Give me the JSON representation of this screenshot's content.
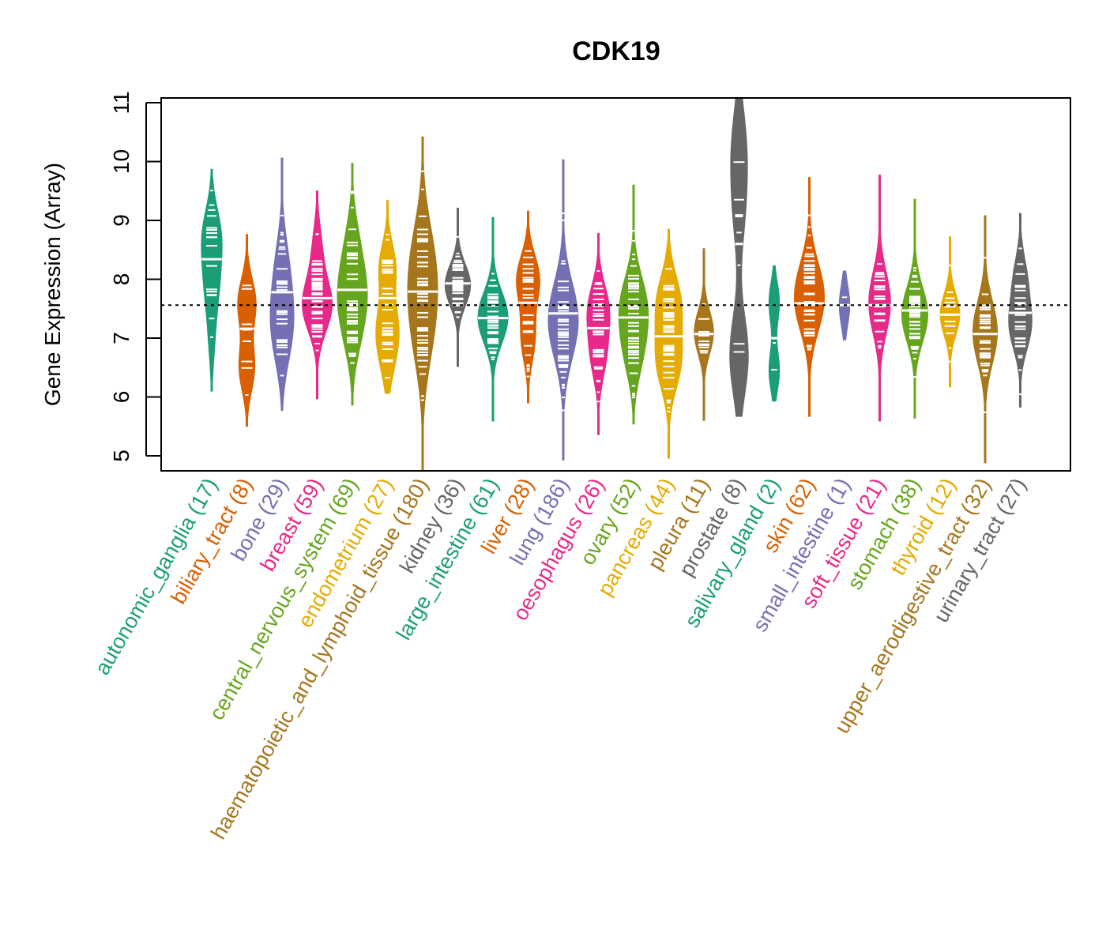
{
  "chart_data": {
    "type": "violin",
    "title": "CDK19",
    "xlabel": "",
    "ylabel": "Gene Expression (Array)",
    "ylim": [
      4.75,
      11.1
    ],
    "yticks": [
      5,
      6,
      7,
      8,
      9,
      10,
      11
    ],
    "reference_line": 7.56,
    "grid": false,
    "categories": [
      {
        "name": "autonomic_ganglia",
        "n": 17,
        "color": "#1B9E77",
        "min": 6.1,
        "max": 9.87,
        "median": 8.34,
        "modes": [
          [
            8.75,
            1.0
          ],
          [
            7.9,
            0.7
          ],
          [
            7.0,
            0.3
          ]
        ]
      },
      {
        "name": "biliary_tract",
        "n": 8,
        "color": "#D95F02",
        "min": 5.5,
        "max": 8.76,
        "median": 7.16,
        "modes": [
          [
            7.6,
            1.0
          ],
          [
            6.5,
            0.85
          ]
        ]
      },
      {
        "name": "bone",
        "n": 29,
        "color": "#7570B3",
        "min": 5.77,
        "max": 10.06,
        "median": 7.78,
        "modes": [
          [
            8.3,
            0.7
          ],
          [
            7.5,
            1.0
          ],
          [
            6.9,
            0.8
          ]
        ]
      },
      {
        "name": "breast",
        "n": 59,
        "color": "#E7298A",
        "min": 5.97,
        "max": 9.5,
        "median": 7.68,
        "modes": [
          [
            7.55,
            1.0
          ],
          [
            8.5,
            0.3
          ]
        ]
      },
      {
        "name": "central_nervous_system",
        "n": 69,
        "color": "#66A61E",
        "min": 5.86,
        "max": 9.97,
        "median": 7.82,
        "modes": [
          [
            7.8,
            1.0
          ],
          [
            8.6,
            0.5
          ],
          [
            7.1,
            0.6
          ]
        ]
      },
      {
        "name": "endometrium",
        "n": 27,
        "color": "#E6AB02",
        "min": 6.06,
        "max": 9.34,
        "median": 7.68,
        "modes": [
          [
            8.2,
            0.8
          ],
          [
            7.2,
            0.9
          ],
          [
            6.6,
            0.5
          ]
        ]
      },
      {
        "name": "haematopoietic_and_lymphoid_tissue",
        "n": 180,
        "color": "#A6761D",
        "min": 4.75,
        "max": 10.42,
        "median": 7.79,
        "modes": [
          [
            7.8,
            0.8
          ],
          [
            8.5,
            0.7
          ],
          [
            7.0,
            0.7
          ]
        ]
      },
      {
        "name": "kidney",
        "n": 36,
        "color": "#666666",
        "min": 6.52,
        "max": 9.21,
        "median": 7.93,
        "modes": [
          [
            7.9,
            1.0
          ]
        ]
      },
      {
        "name": "large_intestine",
        "n": 61,
        "color": "#1B9E77",
        "min": 5.59,
        "max": 9.05,
        "median": 7.34,
        "modes": [
          [
            7.35,
            1.0
          ]
        ]
      },
      {
        "name": "liver",
        "n": 28,
        "color": "#D95F02",
        "min": 5.9,
        "max": 9.16,
        "median": 7.6,
        "modes": [
          [
            8.0,
            1.0
          ],
          [
            7.0,
            0.6
          ]
        ]
      },
      {
        "name": "lung",
        "n": 186,
        "color": "#7570B3",
        "min": 4.93,
        "max": 10.03,
        "median": 7.42,
        "modes": [
          [
            7.3,
            1.0
          ]
        ]
      },
      {
        "name": "oesophagus",
        "n": 26,
        "color": "#E7298A",
        "min": 5.36,
        "max": 8.78,
        "median": 7.17,
        "modes": [
          [
            7.5,
            1.0
          ],
          [
            6.7,
            0.7
          ]
        ]
      },
      {
        "name": "ovary",
        "n": 52,
        "color": "#66A61E",
        "min": 5.54,
        "max": 9.6,
        "median": 7.35,
        "modes": [
          [
            7.6,
            1.0
          ],
          [
            6.8,
            0.7
          ]
        ]
      },
      {
        "name": "pancreas",
        "n": 44,
        "color": "#E6AB02",
        "min": 4.96,
        "max": 8.85,
        "median": 7.03,
        "modes": [
          [
            7.6,
            0.9
          ],
          [
            6.6,
            0.9
          ]
        ]
      },
      {
        "name": "pleura",
        "n": 11,
        "color": "#A6761D",
        "min": 5.6,
        "max": 8.52,
        "median": 7.07,
        "modes": [
          [
            7.1,
            1.0
          ]
        ]
      },
      {
        "name": "prostate",
        "n": 8,
        "color": "#666666",
        "min": 5.67,
        "max": 11.08,
        "median": 8.6,
        "modes": [
          [
            6.7,
            0.8
          ],
          [
            10.3,
            0.55
          ],
          [
            9.2,
            0.45
          ]
        ]
      },
      {
        "name": "salivary_gland",
        "n": 2,
        "color": "#1B9E77",
        "min": 5.93,
        "max": 8.23,
        "median": 7.0,
        "modes": [
          [
            7.6,
            0.4
          ],
          [
            6.45,
            0.4
          ]
        ]
      },
      {
        "name": "skin",
        "n": 62,
        "color": "#D95F02",
        "min": 5.67,
        "max": 9.73,
        "median": 7.59,
        "modes": [
          [
            7.5,
            1.0
          ],
          [
            8.0,
            0.7
          ]
        ]
      },
      {
        "name": "small_intestine",
        "n": 1,
        "color": "#7570B3",
        "min": 6.97,
        "max": 8.14,
        "median": 7.56,
        "modes": [
          [
            7.56,
            0.35
          ]
        ]
      },
      {
        "name": "soft_tissue",
        "n": 21,
        "color": "#E7298A",
        "min": 5.59,
        "max": 9.77,
        "median": 7.56,
        "modes": [
          [
            7.6,
            1.0
          ]
        ]
      },
      {
        "name": "stomach",
        "n": 38,
        "color": "#66A61E",
        "min": 5.64,
        "max": 9.36,
        "median": 7.47,
        "modes": [
          [
            7.4,
            1.0
          ]
        ]
      },
      {
        "name": "thyroid",
        "n": 12,
        "color": "#E6AB02",
        "min": 6.17,
        "max": 8.72,
        "median": 7.4,
        "modes": [
          [
            7.4,
            1.0
          ]
        ]
      },
      {
        "name": "upper_aerodigestive_tract",
        "n": 32,
        "color": "#A6761D",
        "min": 4.88,
        "max": 9.08,
        "median": 7.07,
        "modes": [
          [
            7.1,
            1.0
          ]
        ]
      },
      {
        "name": "urinary_tract",
        "n": 27,
        "color": "#666666",
        "min": 5.83,
        "max": 9.12,
        "median": 7.43,
        "modes": [
          [
            7.2,
            1.0
          ],
          [
            8.0,
            0.6
          ]
        ]
      }
    ]
  }
}
